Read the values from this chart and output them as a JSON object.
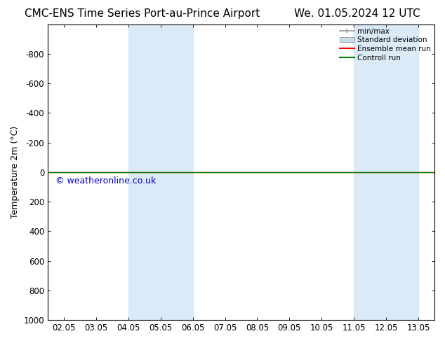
{
  "title_left": "CMC-ENS Time Series Port-au-Prince Airport",
  "title_right": "We. 01.05.2024 12 UTC",
  "ylabel": "Temperature 2m (°C)",
  "watermark": "© weatheronline.co.uk",
  "watermark_color": "#0000cc",
  "ylim_bottom": 1000,
  "ylim_top": -1000,
  "yticks": [
    -800,
    -600,
    -400,
    -200,
    0,
    200,
    400,
    600,
    800,
    1000
  ],
  "xtick_labels": [
    "02.05",
    "03.05",
    "04.05",
    "05.05",
    "06.05",
    "07.05",
    "08.05",
    "09.05",
    "10.05",
    "11.05",
    "12.05",
    "13.05"
  ],
  "xtick_positions": [
    0,
    1,
    2,
    3,
    4,
    5,
    6,
    7,
    8,
    9,
    10,
    11
  ],
  "xlim": [
    -0.5,
    11.5
  ],
  "shaded_regions": [
    {
      "x_start": 2,
      "x_end": 4,
      "color": "#daeaf7"
    },
    {
      "x_start": 9,
      "x_end": 11,
      "color": "#daeaf7"
    }
  ],
  "green_line_y": 0,
  "green_line_color": "#008000",
  "red_line_color": "#ff0000",
  "background_color": "#ffffff",
  "plot_bg_color": "#ffffff",
  "legend_entries": [
    "min/max",
    "Standard deviation",
    "Ensemble mean run",
    "Controll run"
  ],
  "legend_colors_line": [
    "#999999",
    "#c8dde8",
    "#ff0000",
    "#008000"
  ],
  "title_fontsize": 11,
  "tick_fontsize": 8.5,
  "ylabel_fontsize": 9,
  "watermark_fontsize": 9
}
